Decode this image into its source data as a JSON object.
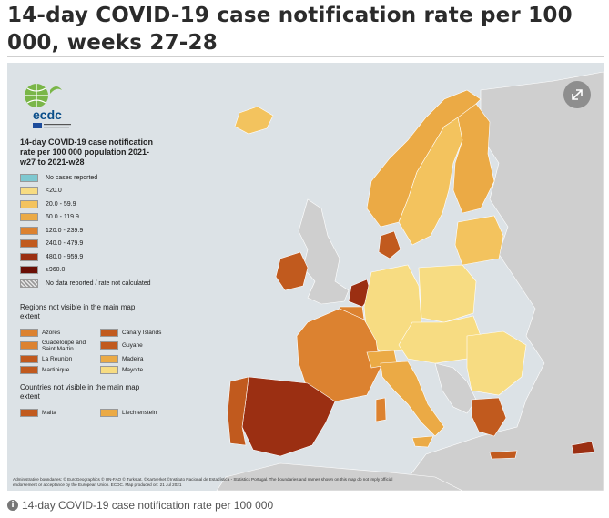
{
  "page_title": "14-day COVID-19 case notification rate per 100 000, weeks 27-28",
  "legend": {
    "logo_text": "ecdc",
    "title": "14-day COVID-19 case notification rate per 100 000 population 2021-w27 to 2021-w28",
    "items": [
      {
        "label": "No cases reported",
        "color": "#7ec8d0"
      },
      {
        "label": "<20.0",
        "color": "#f7dc82"
      },
      {
        "label": "20.0 - 59.9",
        "color": "#f3c35e"
      },
      {
        "label": "60.0 - 119.9",
        "color": "#ebaa45"
      },
      {
        "label": "120.0 - 239.9",
        "color": "#dc8230"
      },
      {
        "label": "240.0 - 479.9",
        "color": "#c15a1e"
      },
      {
        "label": "480.0 - 959.9",
        "color": "#9b2f12"
      },
      {
        "label": "≥960.0",
        "color": "#6a0f06"
      },
      {
        "label": "No data reported / rate not calculated",
        "color": "#bfbfbf"
      }
    ],
    "regions_title": "Regions not visible in the main map extent",
    "regions": [
      {
        "label": "Azores",
        "color": "#dc8230"
      },
      {
        "label": "Canary Islands",
        "color": "#c15a1e"
      },
      {
        "label": "Guadeloupe and Saint Martin",
        "color": "#dc8230"
      },
      {
        "label": "Guyane",
        "color": "#c15a1e"
      },
      {
        "label": "La Reunion",
        "color": "#c15a1e"
      },
      {
        "label": "Madeira",
        "color": "#ebaa45"
      },
      {
        "label": "Martinique",
        "color": "#c15a1e"
      },
      {
        "label": "Mayotte",
        "color": "#f7dc82"
      }
    ],
    "countries_title": "Countries not visible in the main map extent",
    "countries": [
      {
        "label": "Malta",
        "color": "#c15a1e"
      },
      {
        "label": "Liechtenstein",
        "color": "#ebaa45"
      }
    ]
  },
  "footnote": "Administrative boundaries: © EuroGeographics © UN-FAO © Turkstat. ©Kartverket ©Instituto Nacional de Estadística - Statistics Portugal. The boundaries and names shown on this map do not imply official endorsement or acceptance by the European Union. ECDC. Map produced on: 21 Jul 2021",
  "caption": "14-day COVID-19 case notification rate per 100 000",
  "icons": {
    "expand": "expand-icon",
    "info": "info-icon"
  }
}
